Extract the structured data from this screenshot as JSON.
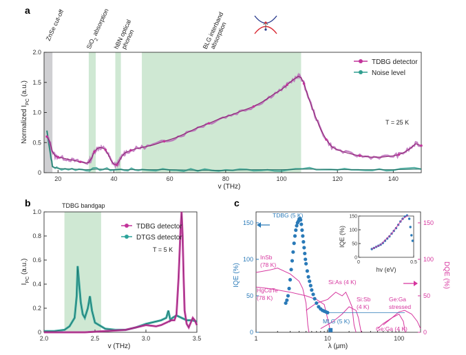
{
  "colors": {
    "tdbg": "#c2339a",
    "tdbg_fit": "#8a1f70",
    "tdbg_raw": "#b35ab2",
    "noise": "#2f9e8f",
    "noise_fit": "#1e6e63",
    "dtgs": "#2ba39a",
    "band": "#cfe8d3",
    "znse_band": "#cfcfd2",
    "iqe": "#2a7ab8",
    "dqe": "#d6359e"
  },
  "chart_data": [
    {
      "id": "a",
      "panel_label": "a",
      "type": "line",
      "xlabel": "v (THz)",
      "ylabel": "Normalized I_PC (a.u.)",
      "ylabel_main": "Normalized I",
      "ylabel_sub": "PC",
      "ylabel_tail": " (a.u.)",
      "xlim": [
        15,
        150
      ],
      "ylim": [
        0,
        2.0
      ],
      "xticks": [
        "20",
        "40",
        "60",
        "80",
        "100",
        "120",
        "140"
      ],
      "xtick_values": [
        20,
        40,
        60,
        80,
        100,
        120,
        140
      ],
      "yticks": [
        "0",
        "0.5",
        "1.0",
        "1.5",
        "2.0"
      ],
      "ytick_values": [
        0,
        0.5,
        1.0,
        1.5,
        2.0
      ],
      "regions": [
        {
          "name": "ZnSe cut-off",
          "x0": 15,
          "x1": 18,
          "kind": "grey"
        },
        {
          "name": "SiO2 absorption",
          "x0": 31,
          "x1": 33.5,
          "kind": "green"
        },
        {
          "name": "hBN optical phonon",
          "x0": 40.5,
          "x1": 42.5,
          "kind": "green"
        },
        {
          "name": "BLG interband absorption",
          "x0": 50,
          "x1": 107,
          "kind": "green"
        }
      ],
      "annotations": {
        "znse": "ZnSe cut-off",
        "sio2_a": "SiO",
        "sio2_sub": "2",
        "sio2_b": " absorption",
        "hbn_1": "hBN optical",
        "hbn_2": "phonon",
        "blg_1": "BLG interband",
        "blg_2": "absorption",
        "temp": "T = 25 K"
      },
      "legend": [
        {
          "label": "TDBG detector",
          "color_key": "tdbg"
        },
        {
          "label": "Noise level",
          "color_key": "noise"
        }
      ],
      "series": [
        {
          "name": "TDBG detector",
          "x": [
            16,
            17,
            18,
            19,
            20,
            22,
            24,
            26,
            28,
            30,
            31,
            32,
            33,
            34,
            35,
            36,
            37,
            38,
            39,
            40,
            41,
            42,
            43,
            44,
            46,
            48,
            50,
            54,
            58,
            62,
            66,
            70,
            74,
            78,
            82,
            86,
            90,
            94,
            97,
            100,
            102,
            104,
            106,
            107,
            108,
            110,
            112,
            114,
            116,
            118,
            120,
            124,
            128,
            132,
            136,
            140,
            142,
            144,
            146,
            148,
            150
          ],
          "y": [
            0.6,
            0.52,
            0.35,
            0.28,
            0.26,
            0.24,
            0.22,
            0.2,
            0.18,
            0.16,
            0.17,
            0.24,
            0.35,
            0.4,
            0.42,
            0.41,
            0.38,
            0.3,
            0.2,
            0.14,
            0.13,
            0.2,
            0.28,
            0.33,
            0.37,
            0.4,
            0.42,
            0.46,
            0.52,
            0.58,
            0.66,
            0.75,
            0.82,
            0.9,
            0.96,
            1.03,
            1.1,
            1.2,
            1.3,
            1.38,
            1.46,
            1.54,
            1.6,
            1.58,
            1.48,
            1.2,
            0.95,
            0.72,
            0.55,
            0.43,
            0.38,
            0.32,
            0.28,
            0.26,
            0.26,
            0.28,
            0.3,
            0.34,
            0.4,
            0.48,
            0.45
          ]
        },
        {
          "name": "Noise level",
          "x": [
            16,
            17,
            18,
            20,
            25,
            30,
            35,
            40,
            45,
            50,
            60,
            70,
            80,
            90,
            100,
            110,
            120,
            130,
            140,
            150
          ],
          "y": [
            0.7,
            0.4,
            0.1,
            0.07,
            0.06,
            0.05,
            0.06,
            0.05,
            0.05,
            0.05,
            0.05,
            0.04,
            0.04,
            0.05,
            0.05,
            0.06,
            0.05,
            0.05,
            0.05,
            0.06
          ]
        }
      ]
    },
    {
      "id": "b",
      "panel_label": "b",
      "type": "line",
      "xlabel": "v (THz)",
      "ylabel": "I_PC (a.u.)",
      "ylabel_main": "I",
      "ylabel_sub": "PC",
      "ylabel_tail": " (a.u.)",
      "xlim": [
        2.0,
        3.5
      ],
      "ylim": [
        0,
        1.0
      ],
      "xticks": [
        "2.0",
        "2.5",
        "3.0",
        "3.5"
      ],
      "xtick_values": [
        2.0,
        2.5,
        3.0,
        3.5
      ],
      "yticks": [
        "0",
        "0.2",
        "0.4",
        "0.6",
        "0.8",
        "1.0"
      ],
      "ytick_values": [
        0,
        0.2,
        0.4,
        0.6,
        0.8,
        1.0
      ],
      "regions": [
        {
          "name": "TDBG bandgap",
          "x0": 2.2,
          "x1": 2.56,
          "kind": "green"
        }
      ],
      "annotations": {
        "bandgap": "TDBG bandgap",
        "temp": "T = 5 K"
      },
      "legend": [
        {
          "label": "TDBG detector",
          "color_key": "tdbg"
        },
        {
          "label": "DTGS detector",
          "color_key": "dtgs"
        }
      ],
      "series": [
        {
          "name": "TDBG detector",
          "x": [
            2.0,
            2.2,
            2.4,
            2.6,
            2.8,
            2.9,
            3.0,
            3.1,
            3.15,
            3.2,
            3.25,
            3.28,
            3.3,
            3.32,
            3.34,
            3.35,
            3.36,
            3.37,
            3.38,
            3.4,
            3.42,
            3.44,
            3.46,
            3.48,
            3.5
          ],
          "y": [
            0.0,
            0.0,
            0.0,
            0.01,
            0.02,
            0.04,
            0.06,
            0.05,
            0.06,
            0.08,
            0.1,
            0.1,
            0.15,
            0.45,
            0.85,
            1.0,
            0.8,
            0.45,
            0.18,
            0.07,
            0.04,
            0.08,
            0.12,
            0.1,
            0.06
          ]
        },
        {
          "name": "DTGS detector",
          "x": [
            2.0,
            2.1,
            2.2,
            2.25,
            2.3,
            2.32,
            2.33,
            2.34,
            2.36,
            2.38,
            2.4,
            2.43,
            2.45,
            2.47,
            2.5,
            2.6,
            2.7,
            2.8,
            2.9,
            3.0,
            3.1,
            3.15,
            3.2,
            3.22,
            3.24,
            3.26,
            3.3,
            3.35,
            3.4,
            3.45,
            3.5
          ],
          "y": [
            0.01,
            0.01,
            0.02,
            0.05,
            0.12,
            0.3,
            0.55,
            0.45,
            0.25,
            0.15,
            0.12,
            0.2,
            0.3,
            0.18,
            0.08,
            0.03,
            0.02,
            0.02,
            0.04,
            0.07,
            0.09,
            0.1,
            0.12,
            0.18,
            0.1,
            0.12,
            0.14,
            0.12,
            0.1,
            0.1,
            0.09
          ]
        }
      ]
    },
    {
      "id": "c",
      "panel_label": "c",
      "type": "scatter",
      "xlabel": "λ (μm)",
      "ylabel_left": "IQE (%)",
      "ylabel_right": "DQE (%)",
      "x_scale": "log",
      "xlim": [
        1,
        200
      ],
      "ylim": [
        0,
        165
      ],
      "xticks": [
        "1",
        "10",
        "100"
      ],
      "xtick_values": [
        1,
        10,
        100
      ],
      "yticks_left": [
        "0",
        "50",
        "100",
        "150"
      ],
      "yticks_right": [
        "0",
        "50",
        "100",
        "150"
      ],
      "ytick_values": [
        0,
        50,
        100,
        150
      ],
      "series": [
        {
          "name": "TDBG (5 K) IQE",
          "x": [
            2.6,
            2.7,
            2.8,
            2.9,
            3.0,
            3.1,
            3.2,
            3.3,
            3.4,
            3.5,
            3.6,
            3.7,
            3.8,
            3.9,
            4.0,
            4.1,
            4.2,
            4.3,
            4.4,
            4.5,
            4.6,
            4.7,
            4.8,
            4.9,
            5.0,
            5.2,
            5.4,
            5.6,
            5.8,
            6.0,
            6.3,
            6.6,
            7.0,
            7.5,
            8.0,
            8.5,
            9.0,
            9.5,
            10.0
          ],
          "y": [
            40,
            44,
            50,
            60,
            72,
            86,
            98,
            110,
            122,
            132,
            140,
            146,
            150,
            152,
            155,
            156,
            154,
            148,
            140,
            132,
            124,
            116,
            108,
            100,
            94,
            84,
            76,
            70,
            64,
            58,
            52,
            46,
            40,
            35,
            32,
            30,
            29,
            28,
            27
          ]
        },
        {
          "name": "MLG (5 K)",
          "x": [
            11.0
          ],
          "y": [
            3
          ]
        },
        {
          "name": "InSb (78 K) DQE",
          "x": [
            1.0,
            1.5,
            2.0,
            3.0,
            4.0,
            4.5,
            5.0,
            5.3,
            5.5
          ],
          "y": [
            82,
            85,
            88,
            80,
            70,
            60,
            40,
            10,
            0
          ]
        },
        {
          "name": "HgCdTe (78 K) DQE",
          "x": [
            1.0,
            1.5,
            2.0,
            3.0,
            5.0,
            7.0,
            9.0,
            10.5,
            11.0
          ],
          "y": [
            62,
            60,
            58,
            55,
            50,
            45,
            38,
            10,
            0
          ]
        },
        {
          "name": "Si:As (4 K) DQE",
          "x": [
            5.0,
            7.0,
            10.0,
            13.0,
            16.0,
            18.0,
            20.0,
            22.0,
            23.5,
            25.0
          ],
          "y": [
            30,
            40,
            45,
            55,
            50,
            55,
            45,
            35,
            10,
            0
          ]
        },
        {
          "name": "Si:Sb (4 K) DQE",
          "x": [
            8.0,
            12.0,
            16.0,
            20.0,
            25.0,
            27.0,
            28.5,
            29.5
          ],
          "y": [
            5,
            15,
            25,
            35,
            30,
            20,
            8,
            0
          ]
        },
        {
          "name": "Ge:Ga (4 K) DQE",
          "x": [
            50,
            60,
            80,
            100,
            115,
            122
          ],
          "y": [
            5,
            12,
            20,
            25,
            15,
            0
          ]
        },
        {
          "name": "Ge:Ga stressed DQE",
          "x": [
            60,
            80,
            100,
            120,
            150,
            180,
            200
          ],
          "y": [
            10,
            20,
            28,
            30,
            25,
            15,
            5
          ]
        }
      ],
      "labels": {
        "tdbg": "TDBG (5 K)",
        "insb_1": "InSb",
        "insb_2": "(78 K)",
        "hgcdte_1": "HgCdTe",
        "hgcdte_2": "(78 K)",
        "sias": "Si:As (4 K)",
        "sisb_1": "Si:Sb",
        "sisb_2": "(4 K)",
        "gega_s1": "Ge:Ga",
        "gega_s2": "stressed",
        "gega": "Ge:Ga (4 K)",
        "mlg": "MLG (5 K)"
      },
      "inset": {
        "xlabel": "hv (eV)",
        "ylabel": "IQE (%)",
        "xlim": [
          0,
          0.5
        ],
        "ylim": [
          0,
          150
        ],
        "xticks": [
          "0",
          "0.5"
        ],
        "xtick_values": [
          0,
          0.5
        ],
        "yticks": [
          "0",
          "50",
          "100",
          "150"
        ],
        "ytick_values": [
          0,
          50,
          100,
          150
        ],
        "x": [
          0.12,
          0.14,
          0.16,
          0.18,
          0.2,
          0.22,
          0.24,
          0.26,
          0.28,
          0.3,
          0.32,
          0.34,
          0.36,
          0.38,
          0.4,
          0.42,
          0.44,
          0.46,
          0.47,
          0.48,
          0.49
        ],
        "y": [
          30,
          34,
          38,
          42,
          46,
          52,
          60,
          68,
          76,
          86,
          96,
          106,
          118,
          130,
          140,
          148,
          152,
          140,
          110,
          80,
          60
        ],
        "fit_x": [
          0.12,
          0.2,
          0.3,
          0.4,
          0.45
        ],
        "fit_y": [
          30,
          46,
          86,
          140,
          152
        ]
      }
    }
  ]
}
